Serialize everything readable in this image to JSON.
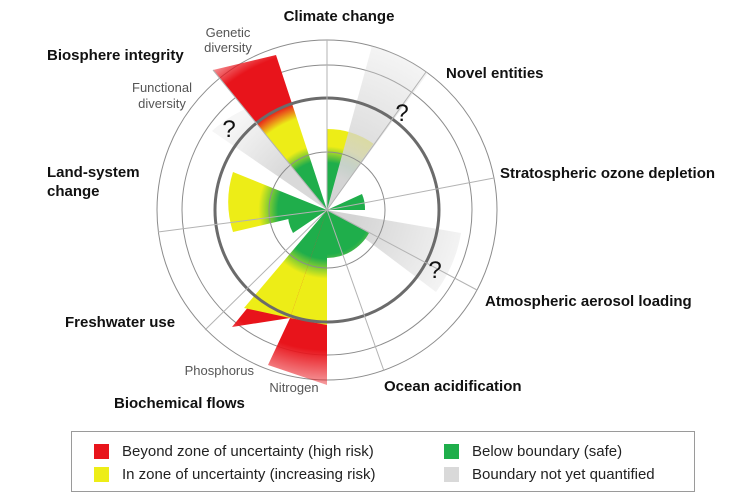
{
  "labels": {
    "climate_change": "Climate change",
    "novel_entities": "Novel entities",
    "stratospheric_ozone": "Stratospheric ozone depletion",
    "atmospheric_aerosol": "Atmospheric aerosol loading",
    "ocean_acidification": "Ocean acidification",
    "biochemical_flows": "Biochemical flows",
    "nitrogen": "Nitrogen",
    "phosphorus": "Phosphorus",
    "freshwater_use": "Freshwater use",
    "land_system_line1": "Land-system",
    "land_system_line2": "change",
    "biosphere_integrity": "Biosphere integrity",
    "functional_line1": "Functional",
    "functional_line2": "diversity",
    "genetic_line1": "Genetic",
    "genetic_line2": "diversity"
  },
  "question_marks": [
    "?",
    "?",
    "?"
  ],
  "legend": [
    {
      "label": "Beyond zone of uncertainty (high risk)",
      "color": "#e8141b"
    },
    {
      "label": "In zone of uncertainty (increasing risk)",
      "color": "#eded17"
    },
    {
      "label": "Below boundary (safe)",
      "color": "#1fae4b"
    },
    {
      "label": "Boundary not yet quantified",
      "color": "#d9d9d9"
    }
  ],
  "colors": {
    "red": "#e8141b",
    "yellow": "#eded17",
    "green": "#1fae4b",
    "grey": "#d9d9d9"
  }
}
